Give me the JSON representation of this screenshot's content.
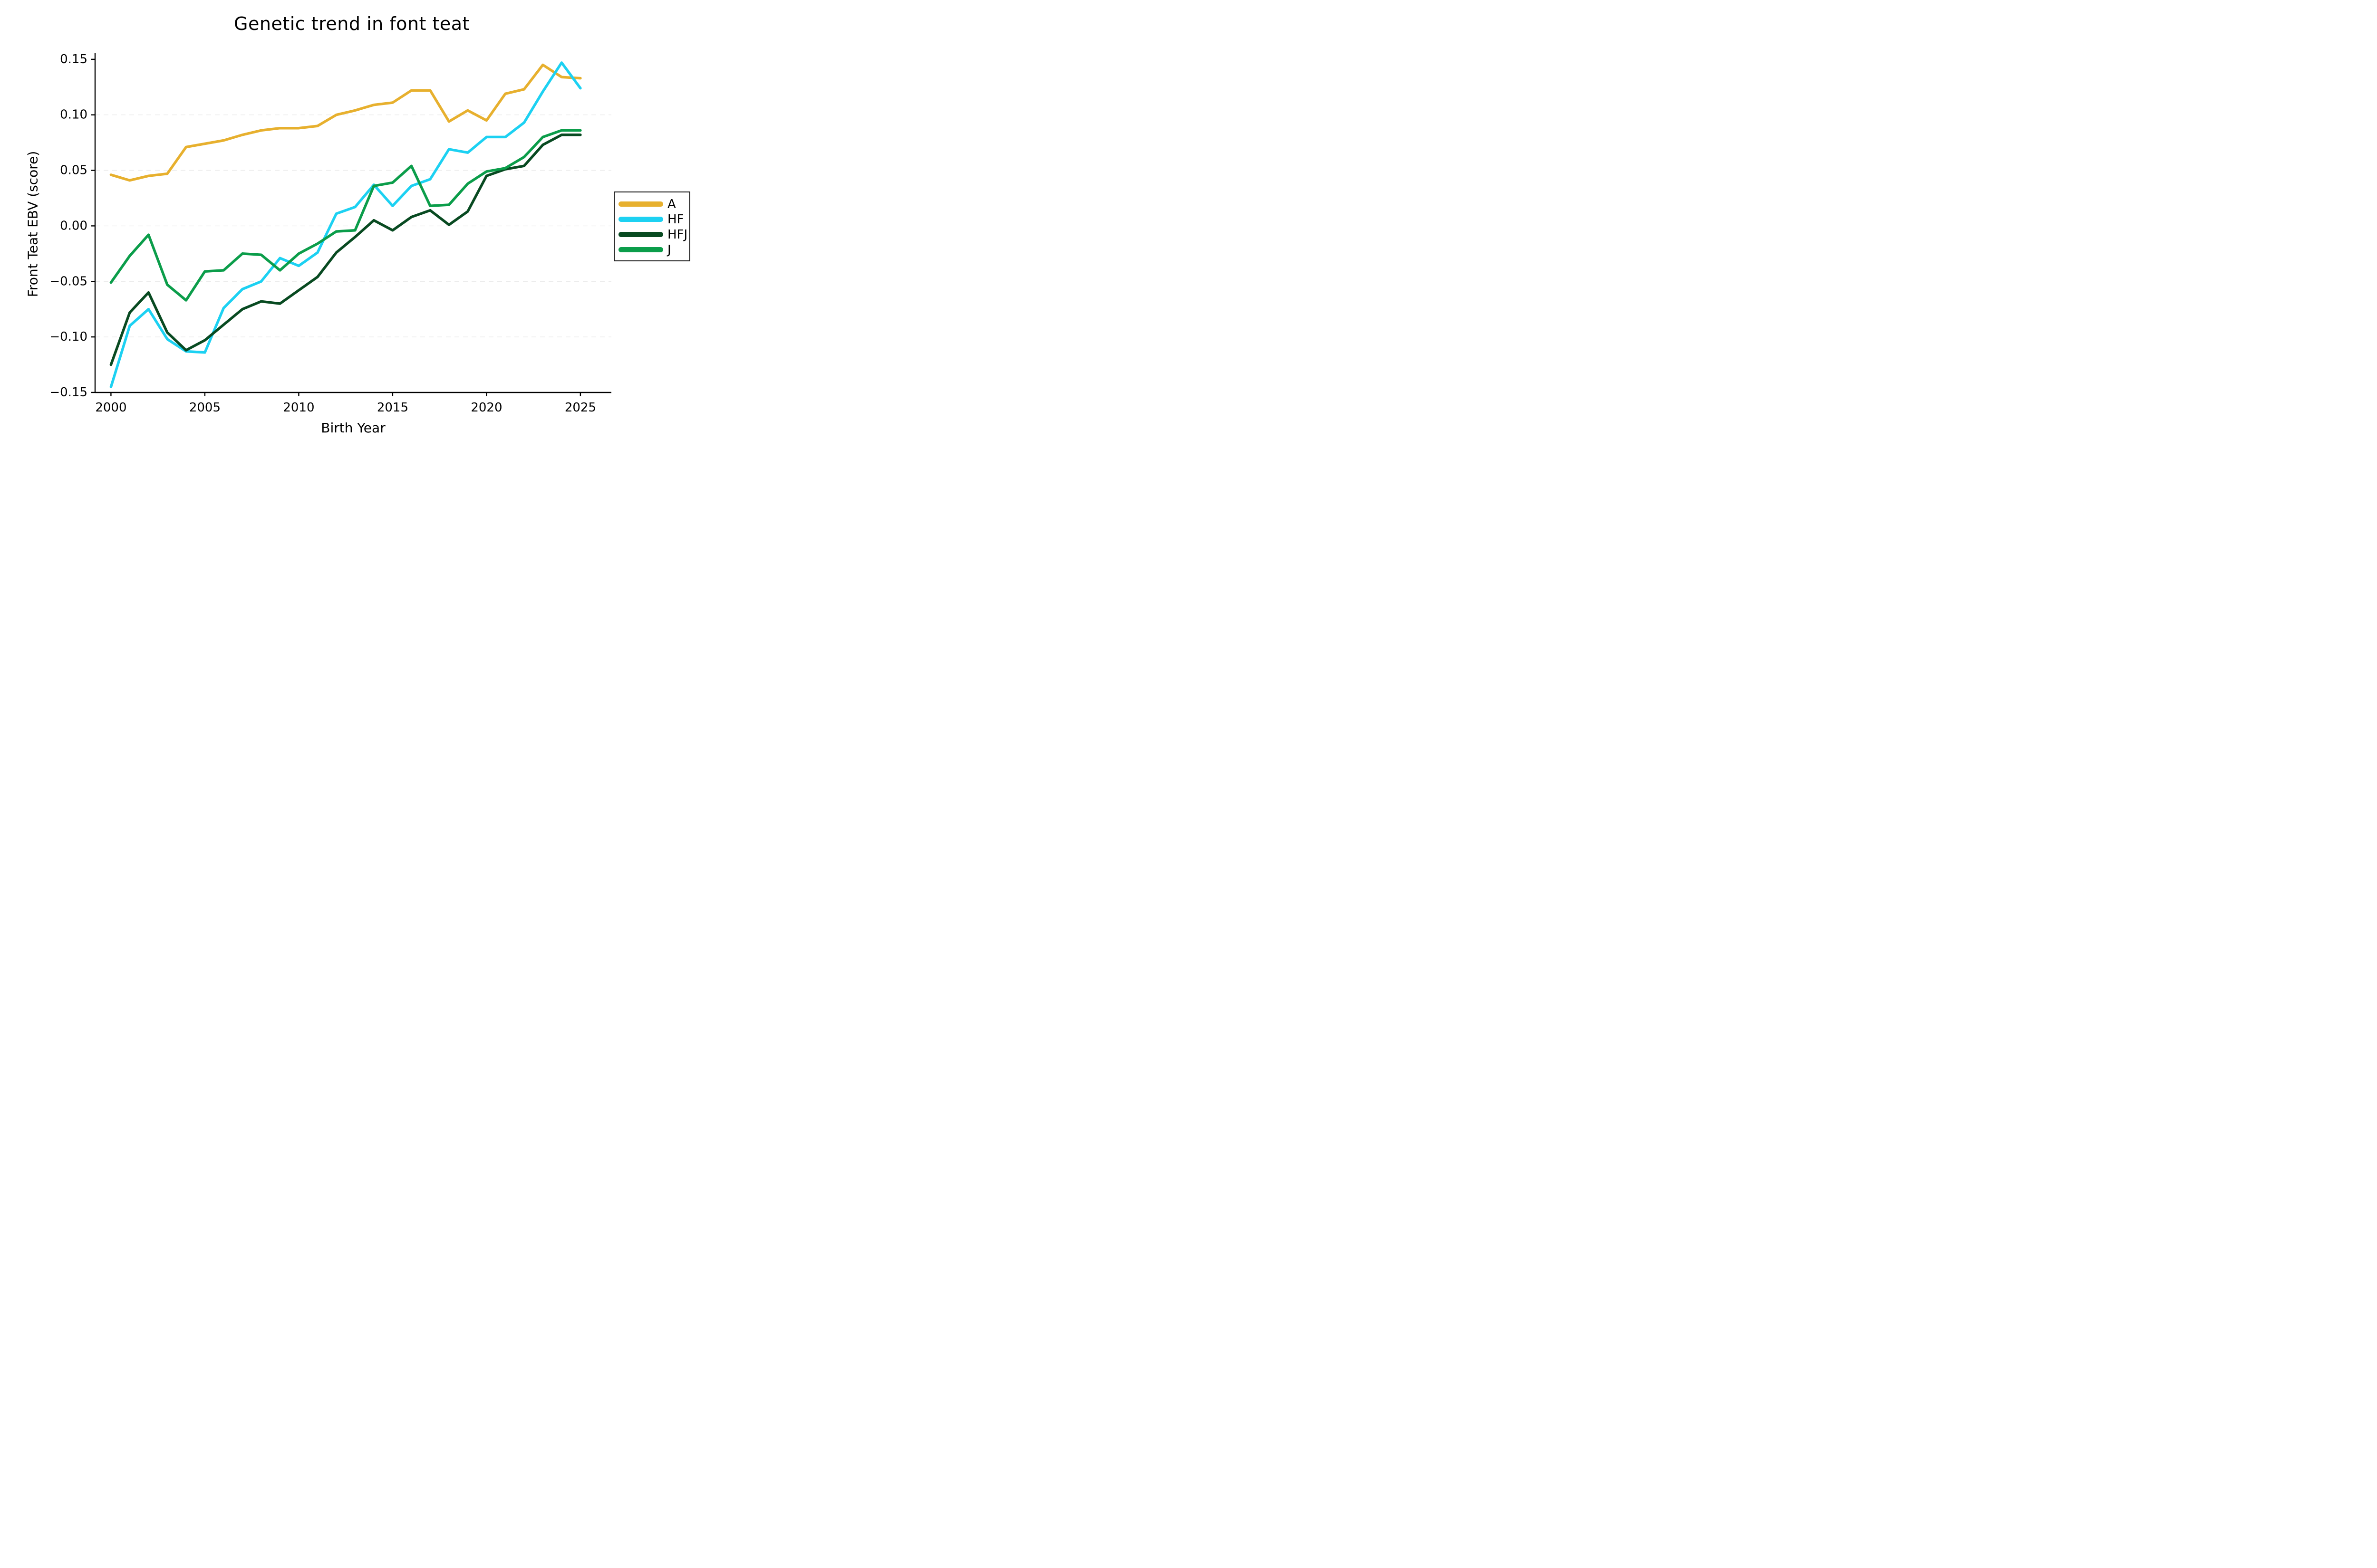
{
  "title": "Genetic trend in font teat",
  "chart_data": {
    "type": "line",
    "title": "Genetic trend in font teat",
    "xlabel": "Birth Year",
    "ylabel": "Front Teat EBV (score)",
    "x": [
      2000,
      2001,
      2002,
      2003,
      2004,
      2005,
      2006,
      2007,
      2008,
      2009,
      2010,
      2011,
      2012,
      2013,
      2014,
      2015,
      2016,
      2017,
      2018,
      2019,
      2020,
      2021,
      2022,
      2023,
      2024,
      2025
    ],
    "series": [
      {
        "name": "A",
        "color": "#E7B02E",
        "values": [
          0.046,
          0.041,
          0.045,
          0.047,
          0.071,
          0.074,
          0.077,
          0.082,
          0.086,
          0.088,
          0.088,
          0.09,
          0.1,
          0.104,
          0.109,
          0.111,
          0.122,
          0.122,
          0.094,
          0.104,
          0.095,
          0.119,
          0.123,
          0.145,
          0.134,
          0.133
        ]
      },
      {
        "name": "HF",
        "color": "#1CD1F2",
        "values": [
          -0.145,
          -0.09,
          -0.075,
          -0.102,
          -0.113,
          -0.114,
          -0.074,
          -0.057,
          -0.05,
          -0.029,
          -0.036,
          -0.024,
          0.011,
          0.017,
          0.037,
          0.018,
          0.036,
          0.042,
          0.069,
          0.066,
          0.08,
          0.08,
          0.093,
          0.121,
          0.147,
          0.124
        ]
      },
      {
        "name": "HFJ",
        "color": "#084A21",
        "values": [
          -0.125,
          -0.078,
          -0.06,
          -0.096,
          -0.112,
          -0.103,
          -0.089,
          -0.075,
          -0.068,
          -0.07,
          -0.058,
          -0.046,
          -0.024,
          -0.01,
          0.005,
          -0.004,
          0.008,
          0.014,
          0.001,
          0.013,
          0.045,
          0.051,
          0.054,
          0.073,
          0.082,
          0.082
        ]
      },
      {
        "name": "J",
        "color": "#0B9D4A",
        "values": [
          -0.051,
          -0.027,
          -0.008,
          -0.053,
          -0.067,
          -0.041,
          -0.04,
          -0.025,
          -0.026,
          -0.04,
          -0.025,
          -0.016,
          -0.005,
          -0.004,
          0.036,
          0.039,
          0.054,
          0.018,
          0.019,
          0.038,
          0.049,
          0.052,
          0.062,
          0.08,
          0.086,
          0.086
        ]
      }
    ],
    "xticks": [
      2000,
      2005,
      2010,
      2015,
      2020,
      2025
    ],
    "yticks": [
      0.15,
      0.1,
      0.05,
      0.0,
      -0.05,
      -0.1,
      -0.15
    ],
    "grid_yvalues": [
      0.1,
      0.05,
      0.0,
      -0.05,
      -0.1
    ],
    "xlim": [
      2000,
      2025
    ],
    "ylim": [
      -0.15,
      0.15
    ],
    "legend_position": "right",
    "axis_color": "#000000",
    "grid_color": "#ebebeb"
  }
}
